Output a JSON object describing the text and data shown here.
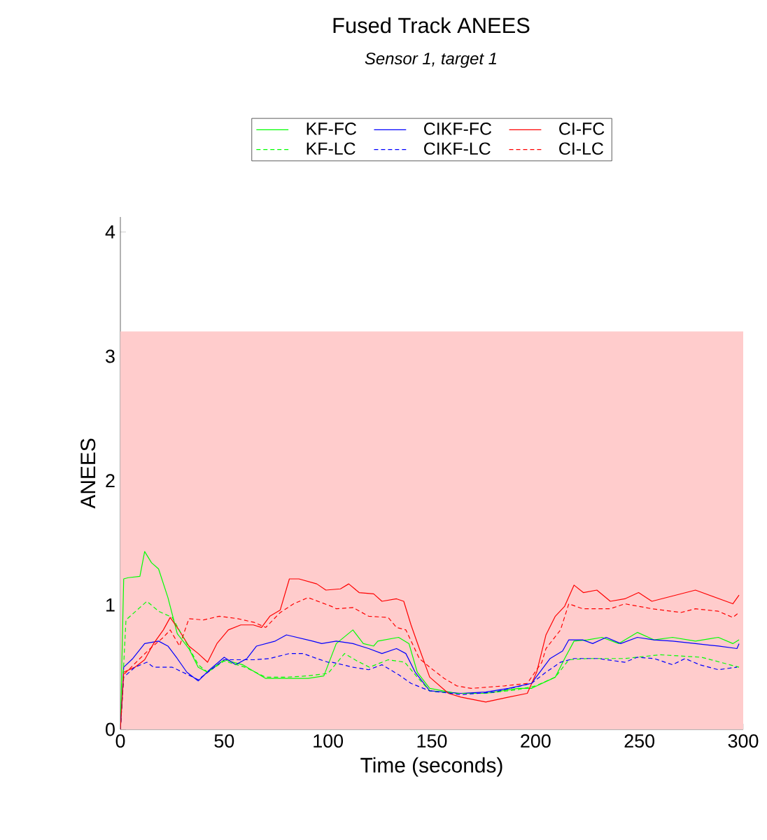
{
  "chart_data": {
    "type": "line",
    "title": "Fused Track ANEES",
    "subtitle": "Sensor 1, target 1",
    "xlabel": "Time (seconds)",
    "ylabel": "ANEES",
    "xlim": [
      0,
      300
    ],
    "ylim": [
      0,
      4.12
    ],
    "xticks": [
      0,
      50,
      100,
      150,
      200,
      250,
      300
    ],
    "yticks": [
      0,
      1,
      2,
      3,
      4
    ],
    "legend": "top",
    "bands": [
      {
        "axis": "y",
        "from": 0,
        "to": 3.2,
        "color": "#ffcccc"
      }
    ],
    "series": [
      {
        "name": "KF-FC",
        "color": "#00ff00",
        "line_style": "solid",
        "x": [
          0,
          1.6,
          3.8,
          9.4,
          11.7,
          15,
          18.4,
          22.9,
          27.4,
          33,
          37.5,
          42,
          50,
          58.9,
          70,
          81.4,
          90.4,
          98,
          104,
          112,
          117,
          122,
          124,
          134,
          139,
          143,
          149,
          162,
          176,
          191.6,
          198,
          209.5,
          214,
          218.5,
          225,
          232,
          240,
          249,
          257,
          266,
          277,
          288,
          295,
          298
        ],
        "values": [
          0,
          1.21,
          1.22,
          1.23,
          1.43,
          1.34,
          1.29,
          1.06,
          0.77,
          0.65,
          0.5,
          0.46,
          0.56,
          0.52,
          0.41,
          0.41,
          0.41,
          0.43,
          0.69,
          0.8,
          0.69,
          0.67,
          0.71,
          0.74,
          0.69,
          0.46,
          0.33,
          0.29,
          0.29,
          0.33,
          0.33,
          0.42,
          0.57,
          0.71,
          0.72,
          0.74,
          0.69,
          0.78,
          0.72,
          0.74,
          0.71,
          0.74,
          0.69,
          0.72
        ]
      },
      {
        "name": "CIKF-FC",
        "color": "#0000ff",
        "line_style": "solid",
        "x": [
          0,
          1.6,
          6,
          11.7,
          18.4,
          22.9,
          27.4,
          32,
          37.5,
          43,
          50,
          55.5,
          61,
          65.6,
          74.6,
          80,
          92.6,
          97,
          104,
          112,
          119.6,
          126,
          133,
          137.5,
          142,
          149,
          164,
          176,
          187,
          198,
          207,
          213,
          216,
          222.7,
          227.5,
          234,
          241,
          249,
          257,
          266,
          277,
          288,
          297,
          298
        ],
        "values": [
          0,
          0.5,
          0.57,
          0.69,
          0.71,
          0.67,
          0.57,
          0.46,
          0.39,
          0.48,
          0.58,
          0.52,
          0.57,
          0.67,
          0.71,
          0.76,
          0.71,
          0.69,
          0.71,
          0.69,
          0.65,
          0.61,
          0.65,
          0.61,
          0.46,
          0.31,
          0.29,
          0.3,
          0.33,
          0.37,
          0.57,
          0.63,
          0.72,
          0.72,
          0.69,
          0.74,
          0.69,
          0.74,
          0.72,
          0.71,
          0.69,
          0.67,
          0.65,
          0.69
        ]
      },
      {
        "name": "CI-FC",
        "color": "#ff0000",
        "line_style": "solid",
        "x": [
          0,
          1.6,
          7,
          11.7,
          16,
          20.7,
          24,
          27.4,
          33,
          37.5,
          42,
          46.5,
          52,
          58,
          64,
          68,
          72,
          77,
          81.4,
          86,
          94.6,
          99,
          106,
          110,
          115,
          122,
          126,
          133,
          136.5,
          140,
          144,
          149,
          158,
          164,
          176,
          187,
          196,
          200.5,
          205,
          209.5,
          214,
          218.5,
          223,
          229.5,
          236,
          243,
          249.6,
          256,
          277,
          295,
          298
        ],
        "values": [
          0,
          0.46,
          0.5,
          0.56,
          0.69,
          0.8,
          0.9,
          0.82,
          0.67,
          0.61,
          0.54,
          0.69,
          0.8,
          0.84,
          0.84,
          0.82,
          0.91,
          0.96,
          1.21,
          1.21,
          1.17,
          1.12,
          1.13,
          1.17,
          1.1,
          1.09,
          1.03,
          1.05,
          1.03,
          0.84,
          0.65,
          0.42,
          0.29,
          0.26,
          0.22,
          0.26,
          0.29,
          0.46,
          0.76,
          0.91,
          0.99,
          1.16,
          1.1,
          1.12,
          1.03,
          1.05,
          1.1,
          1.03,
          1.12,
          1.01,
          1.08
        ]
      },
      {
        "name": "KF-LC",
        "color": "#00ff00",
        "line_style": "dashed",
        "x": [
          0,
          2.7,
          9.4,
          12.8,
          18.4,
          25,
          30,
          37.5,
          42,
          50,
          60,
          70,
          80,
          90,
          100,
          106,
          108,
          114,
          120,
          129,
          137,
          143,
          149,
          162,
          176,
          191.6,
          200,
          209.5,
          216,
          225,
          243,
          260,
          280,
          298
        ],
        "values": [
          0,
          0.88,
          0.98,
          1.03,
          0.95,
          0.9,
          0.75,
          0.52,
          0.46,
          0.55,
          0.5,
          0.42,
          0.42,
          0.43,
          0.45,
          0.57,
          0.61,
          0.55,
          0.5,
          0.56,
          0.54,
          0.42,
          0.31,
          0.29,
          0.29,
          0.32,
          0.35,
          0.42,
          0.56,
          0.57,
          0.57,
          0.6,
          0.58,
          0.5
        ]
      },
      {
        "name": "CIKF-LC",
        "color": "#0000ff",
        "line_style": "dashed",
        "x": [
          0,
          1.6,
          7,
          12.8,
          16,
          25,
          30,
          37.5,
          50,
          64.5,
          72,
          81.4,
          88,
          94.6,
          100,
          102,
          112,
          119.6,
          126,
          134,
          140,
          149,
          164,
          180,
          198,
          205,
          212,
          218.5,
          230,
          243,
          249,
          257,
          266,
          272,
          279,
          288,
          297
        ],
        "values": [
          0,
          0.42,
          0.5,
          0.54,
          0.5,
          0.5,
          0.46,
          0.4,
          0.56,
          0.56,
          0.57,
          0.61,
          0.61,
          0.57,
          0.54,
          0.54,
          0.5,
          0.48,
          0.52,
          0.44,
          0.37,
          0.31,
          0.28,
          0.3,
          0.37,
          0.46,
          0.54,
          0.57,
          0.57,
          0.54,
          0.58,
          0.57,
          0.52,
          0.57,
          0.52,
          0.48,
          0.5
        ]
      },
      {
        "name": "CI-LC",
        "color": "#ff0000",
        "line_style": "dashed",
        "x": [
          0,
          1.6,
          9.4,
          15,
          20.7,
          24,
          28.5,
          33,
          40,
          47.6,
          56.6,
          64.5,
          70,
          77,
          83.5,
          90.4,
          101.6,
          104,
          112,
          119.6,
          129,
          133,
          137.5,
          144,
          149,
          156,
          162,
          169,
          185,
          196,
          203,
          205,
          212,
          216,
          222.7,
          236,
          243,
          256,
          270,
          277,
          288,
          295,
          298
        ],
        "values": [
          0,
          0.44,
          0.57,
          0.66,
          0.74,
          0.8,
          0.67,
          0.89,
          0.88,
          0.91,
          0.89,
          0.86,
          0.82,
          0.94,
          1.01,
          1.06,
          0.99,
          0.97,
          0.98,
          0.91,
          0.9,
          0.82,
          0.8,
          0.57,
          0.5,
          0.41,
          0.35,
          0.33,
          0.35,
          0.37,
          0.54,
          0.65,
          0.8,
          1.01,
          0.97,
          0.97,
          1.01,
          0.97,
          0.94,
          0.97,
          0.95,
          0.9,
          0.94
        ]
      }
    ]
  }
}
